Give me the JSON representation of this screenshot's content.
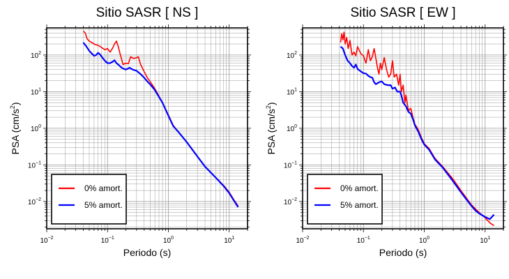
{
  "chart_data": [
    {
      "type": "line",
      "title": "Sitio SASR [ NS ]",
      "xlabel": "Periodo (s)",
      "ylabel_main": "PSA (cm/s",
      "ylabel_sup": "2",
      "ylabel_tail": ")",
      "x_scale": "log",
      "y_scale": "log",
      "xlim": [
        0.01,
        20
      ],
      "ylim": [
        0.0018,
        550
      ],
      "grid": true,
      "legend_position": "lower-left",
      "x_tick_labels": [
        {
          "base": "10",
          "exp": "−2"
        },
        {
          "base": "10",
          "exp": "−1"
        },
        {
          "base": "10",
          "exp": "0"
        },
        {
          "base": "10",
          "exp": "1"
        }
      ],
      "y_tick_labels": [
        {
          "base": "10",
          "exp": "−2"
        },
        {
          "base": "10",
          "exp": "−1"
        },
        {
          "base": "10",
          "exp": "0"
        },
        {
          "base": "10",
          "exp": "1"
        },
        {
          "base": "10",
          "exp": "2"
        }
      ],
      "colors": {
        "series_0": "#ff0000",
        "series_1": "#0000ff"
      },
      "series": [
        {
          "name": "0% amort.",
          "color": "#ff0000",
          "points": [
            [
              0.04,
              450
            ],
            [
              0.043,
              400
            ],
            [
              0.046,
              280
            ],
            [
              0.05,
              240
            ],
            [
              0.055,
              220
            ],
            [
              0.06,
              200
            ],
            [
              0.065,
              190
            ],
            [
              0.072,
              180
            ],
            [
              0.08,
              160
            ],
            [
              0.09,
              140
            ],
            [
              0.1,
              150
            ],
            [
              0.11,
              120
            ],
            [
              0.12,
              150
            ],
            [
              0.13,
              200
            ],
            [
              0.14,
              240
            ],
            [
              0.15,
              170
            ],
            [
              0.16,
              110
            ],
            [
              0.18,
              55
            ],
            [
              0.2,
              60
            ],
            [
              0.22,
              58
            ],
            [
              0.24,
              90
            ],
            [
              0.27,
              80
            ],
            [
              0.3,
              85
            ],
            [
              0.32,
              90
            ],
            [
              0.35,
              55
            ],
            [
              0.4,
              35
            ],
            [
              0.45,
              24
            ],
            [
              0.5,
              19
            ],
            [
              0.6,
              12
            ],
            [
              0.7,
              7.5
            ],
            [
              0.8,
              5
            ],
            [
              1.0,
              2.3
            ],
            [
              1.2,
              1.2
            ],
            [
              1.5,
              0.75
            ],
            [
              2.0,
              0.42
            ],
            [
              3.0,
              0.17
            ],
            [
              4.0,
              0.09
            ],
            [
              6.0,
              0.045
            ],
            [
              8.0,
              0.028
            ],
            [
              10.0,
              0.018
            ],
            [
              12.0,
              0.011
            ],
            [
              14.0,
              0.0075
            ]
          ]
        },
        {
          "name": "5% amort.",
          "color": "#0000ff",
          "points": [
            [
              0.04,
              220
            ],
            [
              0.045,
              170
            ],
            [
              0.05,
              130
            ],
            [
              0.055,
              110
            ],
            [
              0.06,
              95
            ],
            [
              0.065,
              100
            ],
            [
              0.07,
              115
            ],
            [
              0.075,
              105
            ],
            [
              0.08,
              90
            ],
            [
              0.09,
              70
            ],
            [
              0.1,
              60
            ],
            [
              0.11,
              60
            ],
            [
              0.12,
              65
            ],
            [
              0.13,
              72
            ],
            [
              0.14,
              60
            ],
            [
              0.15,
              55
            ],
            [
              0.17,
              45
            ],
            [
              0.2,
              40
            ],
            [
              0.23,
              45
            ],
            [
              0.26,
              40
            ],
            [
              0.3,
              37
            ],
            [
              0.35,
              30
            ],
            [
              0.4,
              24
            ],
            [
              0.45,
              19
            ],
            [
              0.5,
              16
            ],
            [
              0.6,
              11
            ],
            [
              0.7,
              7.2
            ],
            [
              0.8,
              5
            ],
            [
              1.0,
              2.2
            ],
            [
              1.2,
              1.15
            ],
            [
              1.5,
              0.75
            ],
            [
              2.0,
              0.42
            ],
            [
              3.0,
              0.17
            ],
            [
              4.0,
              0.09
            ],
            [
              6.0,
              0.045
            ],
            [
              8.0,
              0.027
            ],
            [
              10.0,
              0.017
            ],
            [
              12.0,
              0.0105
            ],
            [
              14.0,
              0.007
            ]
          ]
        }
      ]
    },
    {
      "type": "line",
      "title": "Sitio SASR [ EW ]",
      "xlabel": "Periodo (s)",
      "ylabel_main": "PSA (cm/s",
      "ylabel_sup": "2",
      "ylabel_tail": ")",
      "x_scale": "log",
      "y_scale": "log",
      "xlim": [
        0.01,
        20
      ],
      "ylim": [
        0.0018,
        550
      ],
      "grid": true,
      "legend_position": "lower-left",
      "x_tick_labels": [
        {
          "base": "10",
          "exp": "−2"
        },
        {
          "base": "10",
          "exp": "−1"
        },
        {
          "base": "10",
          "exp": "0"
        },
        {
          "base": "10",
          "exp": "1"
        }
      ],
      "y_tick_labels": [
        {
          "base": "10",
          "exp": "−2"
        },
        {
          "base": "10",
          "exp": "−1"
        },
        {
          "base": "10",
          "exp": "0"
        },
        {
          "base": "10",
          "exp": "1"
        },
        {
          "base": "10",
          "exp": "2"
        }
      ],
      "colors": {
        "series_0": "#ff0000",
        "series_1": "#0000ff"
      },
      "series": [
        {
          "name": "0% amort.",
          "color": "#ff0000",
          "points": [
            [
              0.042,
              220
            ],
            [
              0.044,
              380
            ],
            [
              0.046,
              260
            ],
            [
              0.048,
              420
            ],
            [
              0.05,
              200
            ],
            [
              0.053,
              300
            ],
            [
              0.056,
              150
            ],
            [
              0.06,
              250
            ],
            [
              0.065,
              100
            ],
            [
              0.07,
              120
            ],
            [
              0.075,
              95
            ],
            [
              0.08,
              170
            ],
            [
              0.09,
              110
            ],
            [
              0.1,
              95
            ],
            [
              0.11,
              60
            ],
            [
              0.12,
              140
            ],
            [
              0.13,
              70
            ],
            [
              0.14,
              90
            ],
            [
              0.15,
              150
            ],
            [
              0.16,
              80
            ],
            [
              0.17,
              45
            ],
            [
              0.18,
              30
            ],
            [
              0.19,
              60
            ],
            [
              0.2,
              40
            ],
            [
              0.22,
              85
            ],
            [
              0.24,
              40
            ],
            [
              0.26,
              25
            ],
            [
              0.28,
              30
            ],
            [
              0.3,
              70
            ],
            [
              0.32,
              25
            ],
            [
              0.35,
              30
            ],
            [
              0.38,
              15
            ],
            [
              0.4,
              30
            ],
            [
              0.42,
              10
            ],
            [
              0.45,
              15
            ],
            [
              0.48,
              5
            ],
            [
              0.5,
              8
            ],
            [
              0.55,
              3
            ],
            [
              0.6,
              3.5
            ],
            [
              0.65,
              2
            ],
            [
              0.7,
              1.3
            ],
            [
              0.8,
              0.9
            ],
            [
              0.9,
              0.55
            ],
            [
              1.0,
              0.38
            ],
            [
              1.2,
              0.28
            ],
            [
              1.5,
              0.15
            ],
            [
              2.0,
              0.09
            ],
            [
              3.0,
              0.04
            ],
            [
              4.0,
              0.02
            ],
            [
              5.0,
              0.012
            ],
            [
              6.0,
              0.008
            ],
            [
              7.0,
              0.0062
            ],
            [
              8.0,
              0.005
            ],
            [
              10.0,
              0.0036
            ],
            [
              12.0,
              0.0026
            ],
            [
              14.0,
              0.0022
            ]
          ]
        },
        {
          "name": "5% amort.",
          "color": "#0000ff",
          "points": [
            [
              0.042,
              170
            ],
            [
              0.046,
              150
            ],
            [
              0.05,
              100
            ],
            [
              0.055,
              70
            ],
            [
              0.06,
              60
            ],
            [
              0.065,
              50
            ],
            [
              0.07,
              45
            ],
            [
              0.075,
              55
            ],
            [
              0.08,
              42
            ],
            [
              0.09,
              36
            ],
            [
              0.1,
              32
            ],
            [
              0.11,
              31
            ],
            [
              0.12,
              27
            ],
            [
              0.13,
              25
            ],
            [
              0.14,
              24
            ],
            [
              0.15,
              18
            ],
            [
              0.16,
              16
            ],
            [
              0.18,
              18
            ],
            [
              0.2,
              19
            ],
            [
              0.22,
              16
            ],
            [
              0.25,
              15
            ],
            [
              0.28,
              15
            ],
            [
              0.3,
              12
            ],
            [
              0.33,
              13
            ],
            [
              0.36,
              10
            ],
            [
              0.4,
              10
            ],
            [
              0.42,
              8
            ],
            [
              0.45,
              5
            ],
            [
              0.5,
              4
            ],
            [
              0.55,
              2.8
            ],
            [
              0.6,
              2.5
            ],
            [
              0.65,
              1.8
            ],
            [
              0.7,
              1.2
            ],
            [
              0.8,
              0.8
            ],
            [
              0.9,
              0.5
            ],
            [
              1.0,
              0.36
            ],
            [
              1.2,
              0.26
            ],
            [
              1.5,
              0.14
            ],
            [
              2.0,
              0.085
            ],
            [
              3.0,
              0.035
            ],
            [
              4.0,
              0.018
            ],
            [
              5.0,
              0.011
            ],
            [
              6.0,
              0.0075
            ],
            [
              7.0,
              0.0056
            ],
            [
              8.0,
              0.0047
            ],
            [
              10.0,
              0.0038
            ],
            [
              12.0,
              0.0033
            ],
            [
              14.0,
              0.0044
            ]
          ]
        }
      ]
    }
  ]
}
